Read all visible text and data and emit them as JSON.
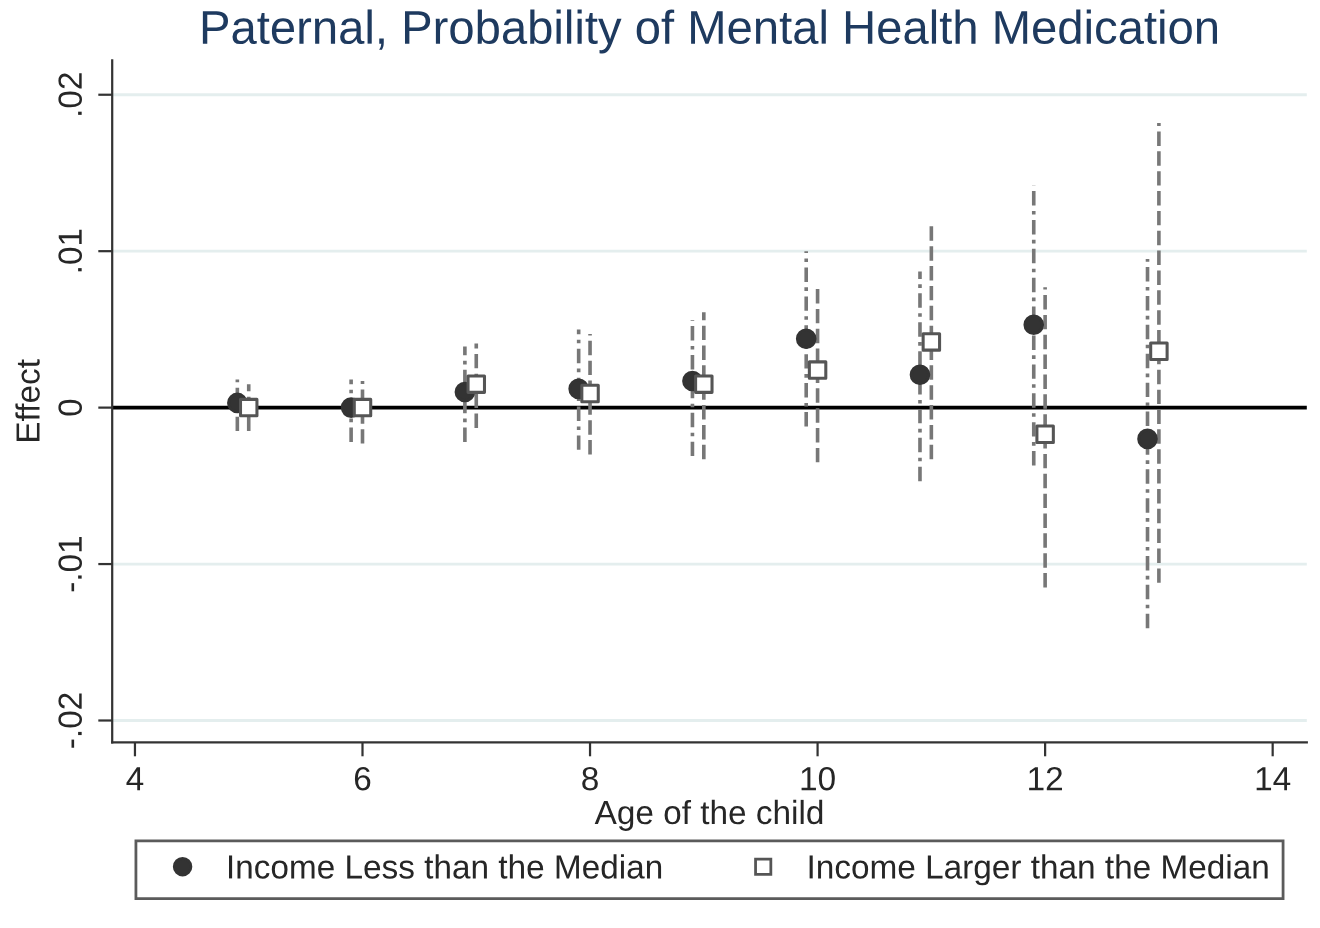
{
  "chart_data": {
    "type": "scatter",
    "title": "Paternal, Probability of Mental Health Medication",
    "xlabel": "Age of the child",
    "ylabel": "Effect",
    "series": [
      {
        "name": "Income Less than the Median",
        "color": "#333333",
        "marker": "circle",
        "line_style": "dashdot",
        "x": [
          4.9,
          5.9,
          6.9,
          7.9,
          8.9,
          9.9,
          10.9,
          11.9,
          12.9
        ],
        "values": [
          0.0003,
          0.0,
          0.001,
          0.0012,
          0.0017,
          0.0044,
          0.0021,
          0.0053,
          -0.002
        ],
        "errors": [
          [
            -0.0015,
            0.0018
          ],
          [
            -0.0022,
            0.0018
          ],
          [
            -0.0022,
            0.0039
          ],
          [
            -0.0027,
            0.005
          ],
          [
            -0.0031,
            0.0056
          ],
          [
            -0.0012,
            0.01
          ],
          [
            -0.0047,
            0.0087
          ],
          [
            -0.0037,
            0.0142
          ],
          [
            -0.0141,
            0.0095
          ]
        ]
      },
      {
        "name": "Income Larger than the Median",
        "color": "#555555",
        "marker": "square",
        "line_style": "dashed",
        "x": [
          5,
          6,
          7,
          8,
          9,
          10,
          11,
          12,
          13
        ],
        "values": [
          0.0,
          0.0,
          0.0015,
          0.0009,
          0.0015,
          0.0024,
          0.0042,
          -0.0017,
          0.0036
        ],
        "errors": [
          [
            -0.0015,
            0.0015
          ],
          [
            -0.0023,
            0.0017
          ],
          [
            -0.0013,
            0.0041
          ],
          [
            -0.003,
            0.0047
          ],
          [
            -0.0033,
            0.0061
          ],
          [
            -0.0035,
            0.0076
          ],
          [
            -0.0033,
            0.0116
          ],
          [
            -0.0115,
            0.0077
          ],
          [
            -0.0112,
            0.0182
          ]
        ]
      }
    ],
    "xlim": [
      3.8,
      14.3
    ],
    "xticks": [
      4,
      6,
      8,
      10,
      12,
      14
    ],
    "ylim": [
      -0.0214,
      0.0222
    ],
    "yticks": [
      {
        "value": -0.02,
        "label": "-.02"
      },
      {
        "value": -0.01,
        "label": "-.01"
      },
      0,
      {
        "value": 0.01,
        "label": ".01"
      },
      {
        "value": 0.02,
        "label": ".02"
      }
    ],
    "ref_lines": [
      {
        "axis": "y",
        "value": 0,
        "color": "#000000"
      }
    ],
    "grid": "y",
    "legend": "bottom"
  }
}
